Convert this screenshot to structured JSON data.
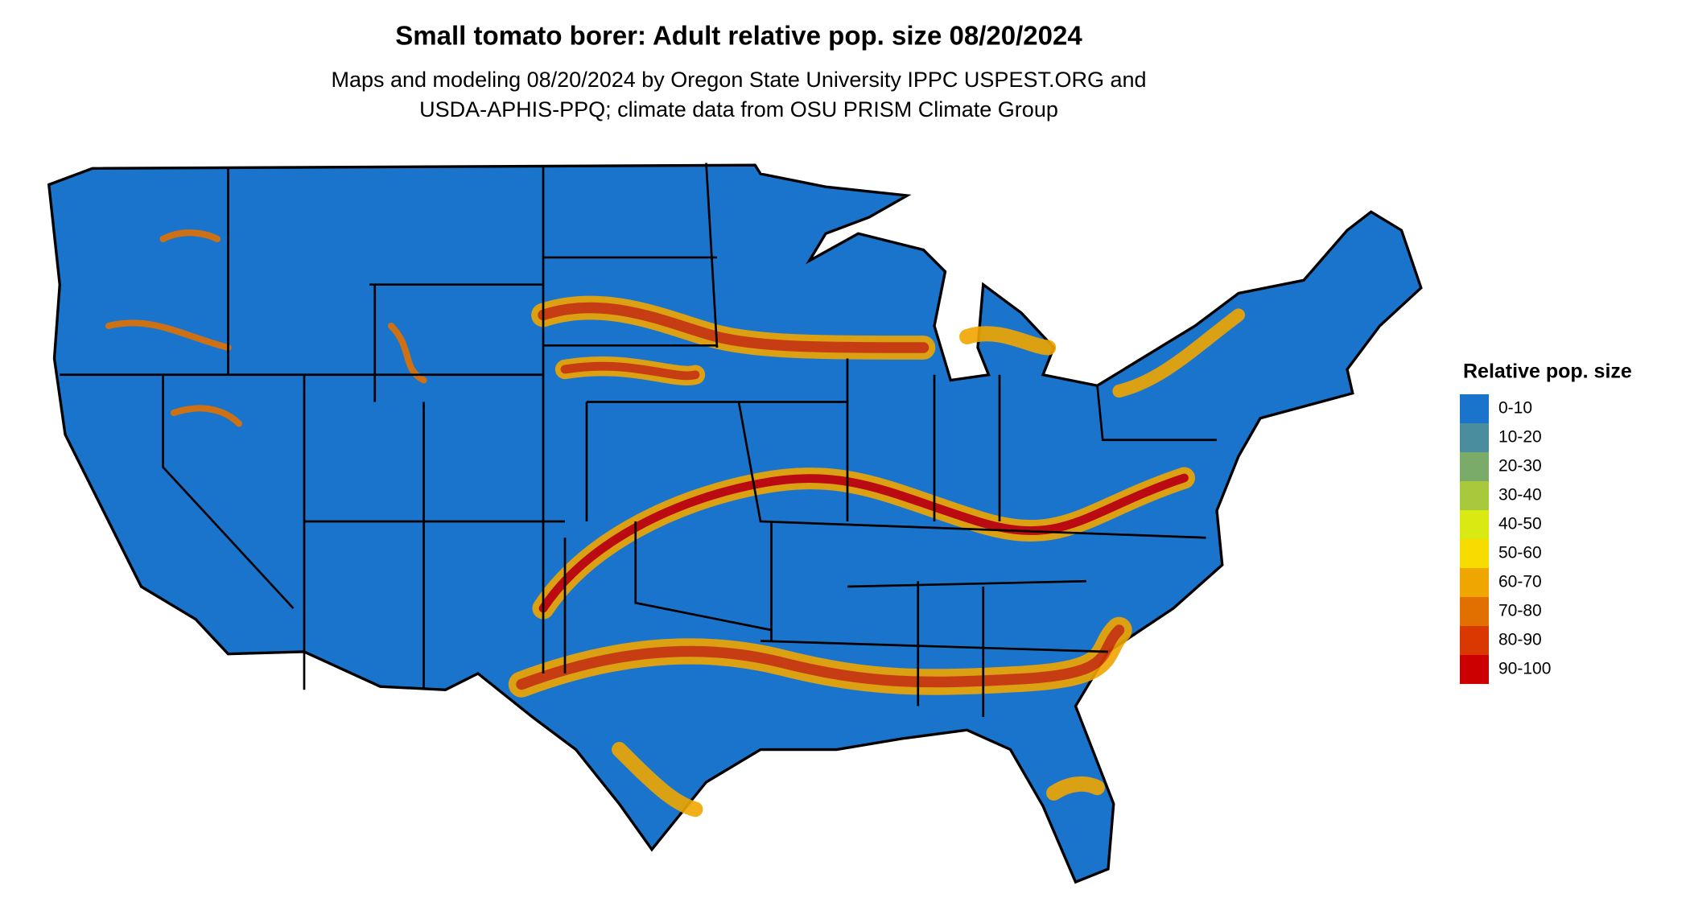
{
  "title": "Small tomato borer: Adult relative pop. size 08/20/2024",
  "subtitle": [
    "Maps and modeling 08/20/2024 by Oregon State University IPPC USPEST.ORG and",
    "USDA-APHIS-PPQ; climate data from OSU PRISM Climate Group"
  ],
  "legend": {
    "title": "Relative pop. size",
    "items": [
      {
        "label": "0-10",
        "color": "#1b74cc"
      },
      {
        "label": "10-20",
        "color": "#4a8d9e"
      },
      {
        "label": "20-30",
        "color": "#7aab68"
      },
      {
        "label": "30-40",
        "color": "#a8c93c"
      },
      {
        "label": "40-50",
        "color": "#dbe912"
      },
      {
        "label": "50-60",
        "color": "#f7dc00"
      },
      {
        "label": "60-70",
        "color": "#f0a600"
      },
      {
        "label": "70-80",
        "color": "#e27000"
      },
      {
        "label": "80-90",
        "color": "#d93800"
      },
      {
        "label": "90-100",
        "color": "#cc0000"
      }
    ]
  }
}
